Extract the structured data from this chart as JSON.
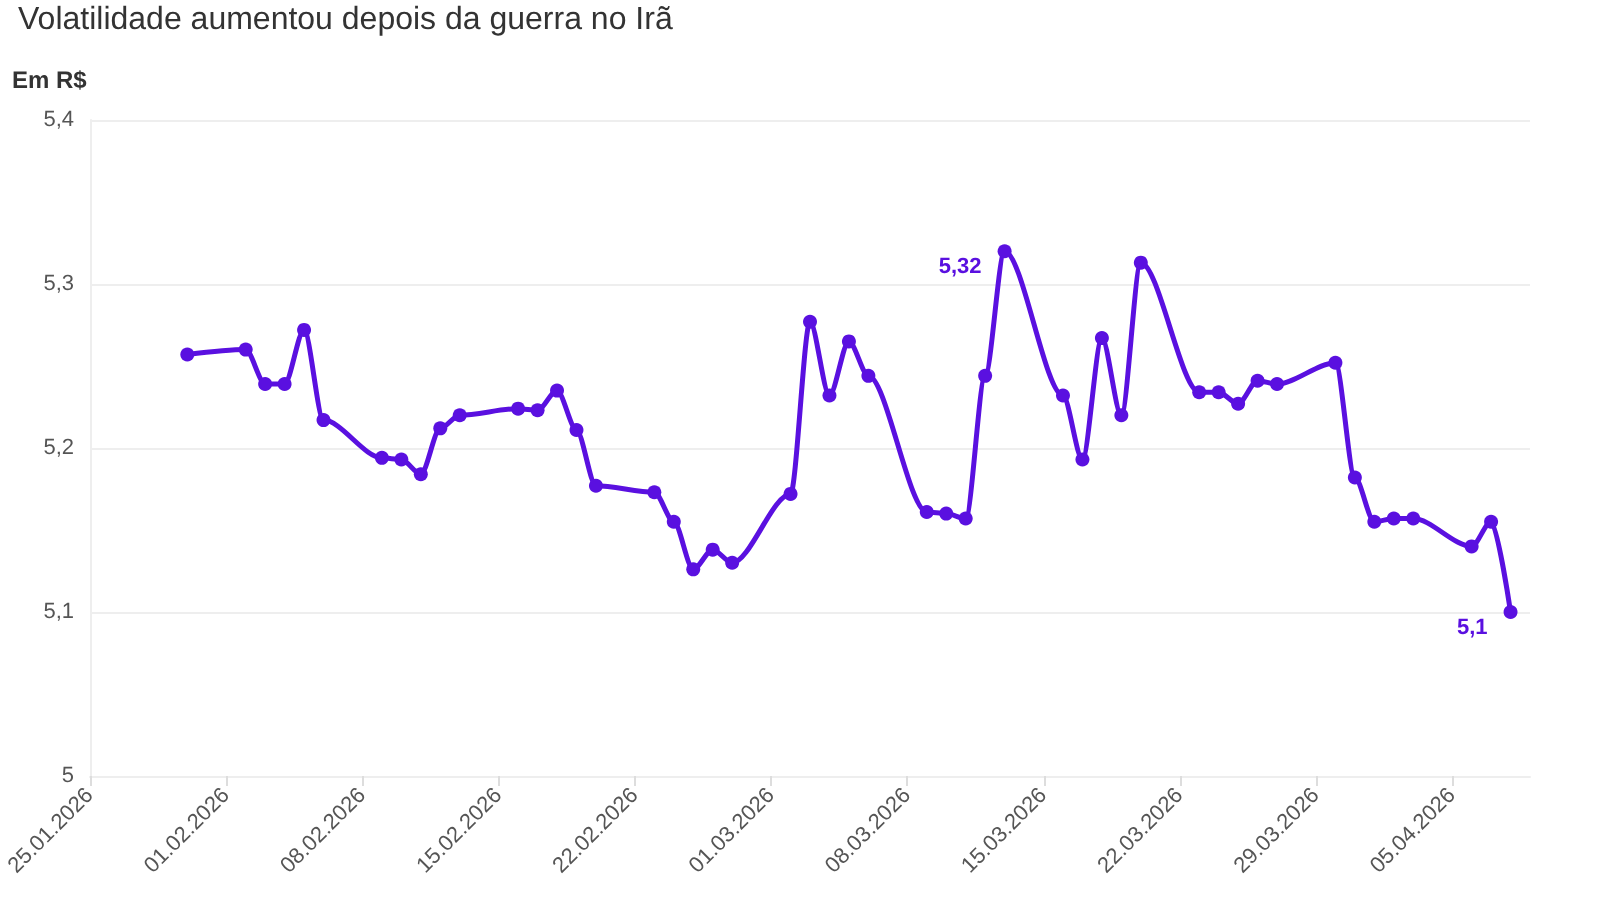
{
  "chart_data": {
    "type": "line",
    "title": "Volatilidade aumentou depois da guerra no Irã",
    "ylabel": "Em R$",
    "x": [
      "2026-01-30",
      "2026-02-02",
      "2026-02-03",
      "2026-02-04",
      "2026-02-05",
      "2026-02-06",
      "2026-02-09",
      "2026-02-10",
      "2026-02-11",
      "2026-02-12",
      "2026-02-13",
      "2026-02-16",
      "2026-02-17",
      "2026-02-18",
      "2026-02-19",
      "2026-02-20",
      "2026-02-23",
      "2026-02-24",
      "2026-02-25",
      "2026-02-26",
      "2026-02-27",
      "2026-03-02",
      "2026-03-03",
      "2026-03-04",
      "2026-03-05",
      "2026-03-06",
      "2026-03-09",
      "2026-03-10",
      "2026-03-11",
      "2026-03-12",
      "2026-03-13",
      "2026-03-16",
      "2026-03-17",
      "2026-03-18",
      "2026-03-19",
      "2026-03-20",
      "2026-03-23",
      "2026-03-24",
      "2026-03-25",
      "2026-03-26",
      "2026-03-27",
      "2026-03-30",
      "2026-03-31",
      "2026-04-01",
      "2026-04-02",
      "2026-04-03",
      "2026-04-06",
      "2026-04-07",
      "2026-04-08"
    ],
    "series": [
      {
        "color": "#5a10e0",
        "values": [
          5.257,
          5.26,
          5.239,
          5.239,
          5.272,
          5.217,
          5.194,
          5.193,
          5.184,
          5.212,
          5.22,
          5.224,
          5.223,
          5.235,
          5.211,
          5.177,
          5.173,
          5.155,
          5.126,
          5.138,
          5.13,
          5.172,
          5.277,
          5.232,
          5.265,
          5.244,
          5.161,
          5.16,
          5.157,
          5.244,
          5.32,
          5.232,
          5.193,
          5.267,
          5.22,
          5.313,
          5.234,
          5.234,
          5.227,
          5.241,
          5.239,
          5.252,
          5.182,
          5.155,
          5.157,
          5.157,
          5.14,
          5.155,
          5.1
        ],
        "value_labels": [
          null,
          null,
          null,
          null,
          null,
          null,
          null,
          null,
          null,
          null,
          null,
          null,
          null,
          null,
          null,
          null,
          null,
          null,
          null,
          null,
          null,
          null,
          null,
          null,
          null,
          null,
          null,
          null,
          null,
          null,
          "5,32",
          null,
          null,
          null,
          null,
          null,
          null,
          null,
          null,
          null,
          null,
          null,
          null,
          null,
          null,
          null,
          null,
          null,
          "5,1"
        ]
      }
    ],
    "xlim": [
      "2026-01-25",
      "2026-04-09"
    ],
    "xticks": [
      {
        "value": "2026-01-25",
        "label": "25.01.2026"
      },
      {
        "value": "2026-02-01",
        "label": "01.02.2026"
      },
      {
        "value": "2026-02-08",
        "label": "08.02.2026"
      },
      {
        "value": "2026-02-15",
        "label": "15.02.2026"
      },
      {
        "value": "2026-02-22",
        "label": "22.02.2026"
      },
      {
        "value": "2026-03-01",
        "label": "01.03.2026"
      },
      {
        "value": "2026-03-08",
        "label": "08.03.2026"
      },
      {
        "value": "2026-03-15",
        "label": "15.03.2026"
      },
      {
        "value": "2026-03-22",
        "label": "22.03.2026"
      },
      {
        "value": "2026-03-29",
        "label": "29.03.2026"
      },
      {
        "value": "2026-04-05",
        "label": "05.04.2026"
      }
    ],
    "ylim": [
      5,
      5.4
    ],
    "yticks": [
      {
        "value": 5,
        "label": "5"
      },
      {
        "value": 5.1,
        "label": "5,1"
      },
      {
        "value": 5.2,
        "label": "5,2"
      },
      {
        "value": 5.3,
        "label": "5,3"
      },
      {
        "value": 5.4,
        "label": "5,4"
      }
    ],
    "grid": "y",
    "marker": "circle",
    "line_style": "solid"
  }
}
